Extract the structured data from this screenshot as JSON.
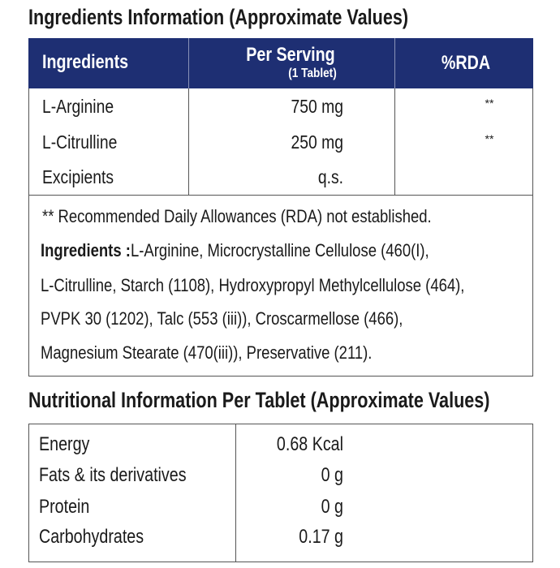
{
  "title": "Ingredients Information (Approximate Values)",
  "ingredients_table": {
    "header": {
      "ingredients": "Ingredients",
      "per_serving": "Per Serving",
      "per_serving_sub": "(1 Tablet)",
      "rda": "%RDA"
    },
    "rows": [
      [
        "L-Arginine",
        "750 mg",
        "**"
      ],
      [
        "L-Citrulline",
        "250 mg",
        "**"
      ],
      [
        "Excipients",
        "q.s."
      ]
    ],
    "note": "** Recommended Daily Allowances (RDA) not established.",
    "ingredients_label": "Ingredients :",
    "ingredients_lines": [
      " L-Arginine, Microcrystalline Cellulose (460(I),",
      "L-Citrulline, Starch (1108), Hydroxypropyl Methylcellulose (464),",
      "PVPK 30 (1202), Talc (553 (iii)), Croscarmellose (466),",
      "Magnesium Stearate (470(iii)), Preservative (211)."
    ]
  },
  "nutrition_title": "Nutritional Information Per Tablet (Approximate Values)",
  "nutrition_table": {
    "rows": [
      [
        "Energy",
        "0.68 Kcal"
      ],
      [
        "Fats & its derivatives",
        "0 g"
      ],
      [
        "Protein",
        "0 g"
      ],
      [
        "Carbohydrates",
        "0.17 g"
      ]
    ]
  }
}
